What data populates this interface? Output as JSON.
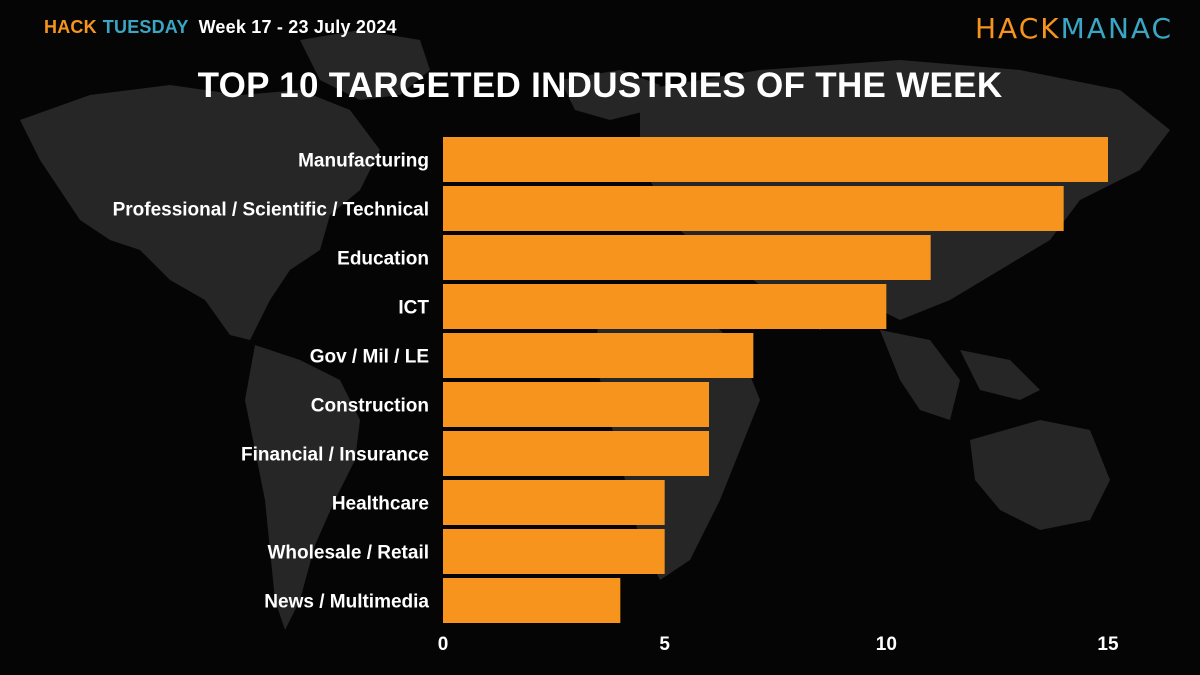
{
  "header": {
    "brand_hack": "HACK",
    "brand_tuesday": "TUESDAY",
    "week": "Week 17 - 23 July 2024"
  },
  "logo": {
    "part1": "HACK",
    "part2": "MANAC"
  },
  "colors": {
    "bar": "#f7941d",
    "accent_teal": "#3aa6c4",
    "background": "#050505",
    "map": "#2a2a2a"
  },
  "chart_data": {
    "type": "bar",
    "orientation": "horizontal",
    "title": "TOP 10 TARGETED INDUSTRIES OF THE WEEK",
    "categories": [
      "Manufacturing",
      "Professional / Scientific / Technical",
      "Education",
      "ICT",
      "Gov / Mil / LE",
      "Construction",
      "Financial / Insurance",
      "Healthcare",
      "Wholesale / Retail",
      "News / Multimedia"
    ],
    "values": [
      15,
      14,
      11,
      10,
      7,
      6,
      6,
      5,
      5,
      4
    ],
    "xlim": [
      0,
      15
    ],
    "xticks": [
      0,
      5,
      10,
      15
    ],
    "xlabel": "",
    "ylabel": "",
    "grid": false
  }
}
